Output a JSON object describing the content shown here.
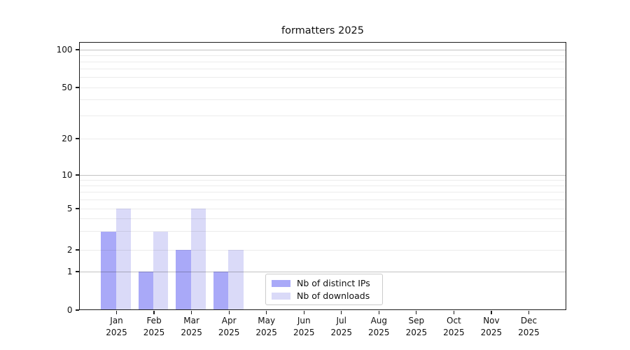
{
  "title": "formatters 2025",
  "chart_data": {
    "type": "bar",
    "title": "formatters 2025",
    "categories": [
      {
        "month": "Jan",
        "year": "2025"
      },
      {
        "month": "Feb",
        "year": "2025"
      },
      {
        "month": "Mar",
        "year": "2025"
      },
      {
        "month": "Apr",
        "year": "2025"
      },
      {
        "month": "May",
        "year": "2025"
      },
      {
        "month": "Jun",
        "year": "2025"
      },
      {
        "month": "Jul",
        "year": "2025"
      },
      {
        "month": "Aug",
        "year": "2025"
      },
      {
        "month": "Sep",
        "year": "2025"
      },
      {
        "month": "Oct",
        "year": "2025"
      },
      {
        "month": "Nov",
        "year": "2025"
      },
      {
        "month": "Dec",
        "year": "2025"
      }
    ],
    "series": [
      {
        "name": "Nb of distinct IPs",
        "color": "#a9a9f8",
        "values": [
          3,
          1,
          2,
          1,
          0,
          0,
          0,
          0,
          0,
          0,
          0,
          0
        ]
      },
      {
        "name": "Nb of downloads",
        "color": "#dadaf8",
        "values": [
          5,
          3,
          5,
          2,
          0,
          0,
          0,
          0,
          0,
          0,
          0,
          0
        ]
      }
    ],
    "yaxis": {
      "scale": "log-like with zero baseline",
      "tick_values": [
        0,
        1,
        2,
        5,
        10,
        20,
        50,
        100
      ],
      "tick_labels": [
        "0",
        "1",
        "2",
        "5",
        "10",
        "20",
        "50",
        "100"
      ],
      "major_values": [
        1,
        10,
        100
      ],
      "minor_gridline_values": [
        3,
        4,
        6,
        7,
        8,
        9,
        30,
        40,
        60,
        70,
        80,
        90
      ]
    },
    "xlabel": "",
    "ylabel": "",
    "legend_position": "lower center",
    "grid": true
  }
}
